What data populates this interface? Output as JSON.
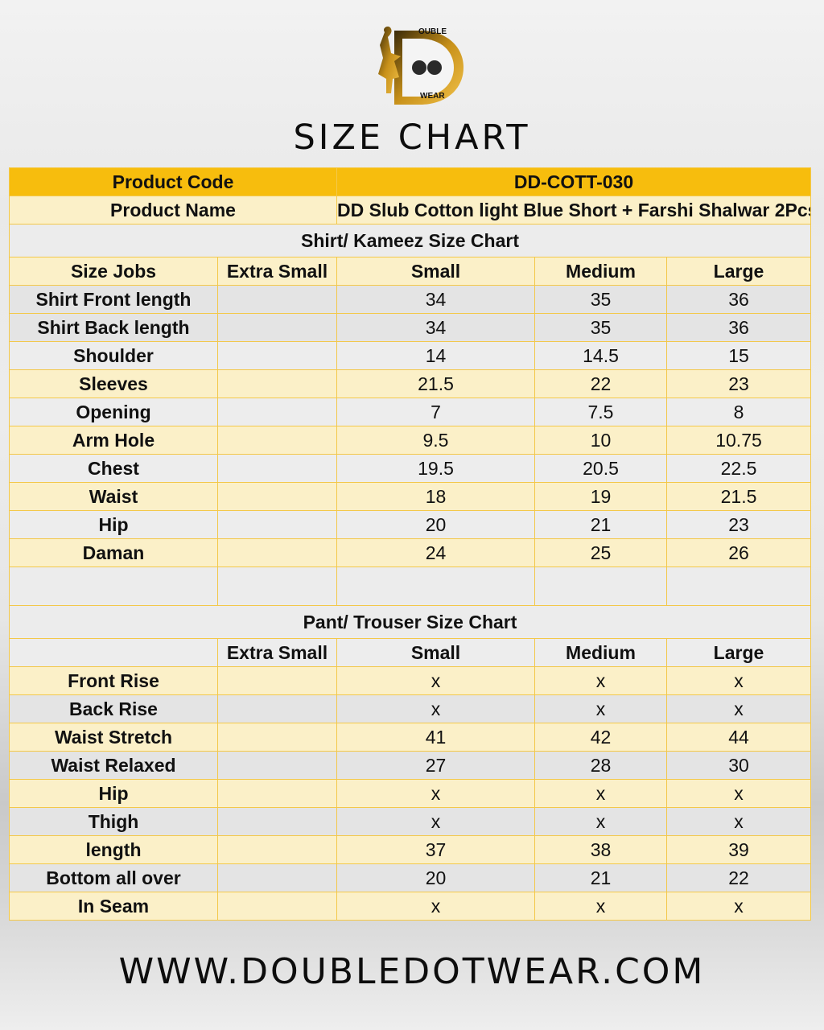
{
  "brand": {
    "logo_top": "OUBLE",
    "logo_bottom": "WEAR",
    "gold": "#d9a114"
  },
  "title": "SIZE CHART",
  "product": {
    "code_label": "Product Code",
    "code_value": "DD-COTT-030",
    "name_label": "Product Name",
    "name_value": "DD Slub Cotton light Blue Short + Farshi Shalwar 2Pcs"
  },
  "shirt": {
    "heading": "Shirt/ Kameez Size Chart",
    "columns": [
      "Size Jobs",
      "Extra Small",
      "Small",
      "Medium",
      "Large"
    ],
    "rows": [
      [
        "Shirt Front length",
        "",
        "34",
        "35",
        "36"
      ],
      [
        "Shirt Back length",
        "",
        "34",
        "35",
        "36"
      ],
      [
        "Shoulder",
        "",
        "14",
        "14.5",
        "15"
      ],
      [
        "Sleeves",
        "",
        "21.5",
        "22",
        "23"
      ],
      [
        "Opening",
        "",
        "7",
        "7.5",
        "8"
      ],
      [
        "Arm Hole",
        "",
        "9.5",
        "10",
        "10.75"
      ],
      [
        "Chest",
        "",
        "19.5",
        "20.5",
        "22.5"
      ],
      [
        "Waist",
        "",
        "18",
        "19",
        "21.5"
      ],
      [
        "Hip",
        "",
        "20",
        "21",
        "23"
      ],
      [
        "Daman",
        "",
        "24",
        "25",
        "26"
      ]
    ]
  },
  "pant": {
    "heading": "Pant/ Trouser Size Chart",
    "columns": [
      "",
      "Extra Small",
      "Small",
      "Medium",
      "Large"
    ],
    "rows": [
      [
        "Front Rise",
        "",
        "x",
        "x",
        "x"
      ],
      [
        "Back Rise",
        "",
        "x",
        "x",
        "x"
      ],
      [
        "Waist Stretch",
        "",
        "41",
        "42",
        "44"
      ],
      [
        "Waist Relaxed",
        "",
        "27",
        "28",
        "30"
      ],
      [
        "Hip",
        "",
        "x",
        "x",
        "x"
      ],
      [
        "Thigh",
        "",
        "x",
        "x",
        "x"
      ],
      [
        "length",
        "",
        "37",
        "38",
        "39"
      ],
      [
        "Bottom all over",
        "",
        "20",
        "21",
        "22"
      ],
      [
        "In Seam",
        "",
        "x",
        "x",
        "x"
      ]
    ]
  },
  "website": "WWW.DOUBLEDOTWEAR.COM"
}
